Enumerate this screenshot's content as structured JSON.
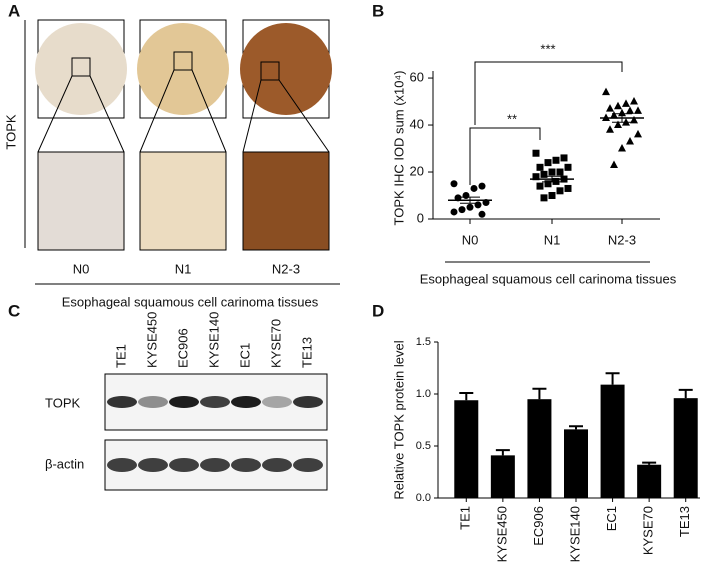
{
  "panels": {
    "a": {
      "letter": "A",
      "row_label": "TOPK",
      "columns": [
        "N0",
        "N1",
        "N2-3"
      ],
      "caption": "Esophageal squamous cell carinoma tissues"
    },
    "c": {
      "letter": "C",
      "lanes": [
        "TE1",
        "KYSE450",
        "EC906",
        "KYSE140",
        "EC1",
        "KYSE70",
        "TE13"
      ],
      "rows": [
        "TOPK",
        "β-actin"
      ]
    }
  },
  "chart_data": [
    {
      "type": "dot",
      "label": "B",
      "ylabel": "TOPK IHC IOD sum (x10⁴)",
      "xlabel": "Esophageal squamous cell carinoma tissues",
      "categories": [
        "N0",
        "N1",
        "N2-3"
      ],
      "values": [
        [
          15,
          14,
          13,
          10,
          9,
          7,
          6,
          5,
          4,
          3,
          2
        ],
        [
          28,
          26,
          25,
          24,
          22,
          22,
          20,
          20,
          19,
          18,
          17,
          16,
          15,
          14,
          13,
          12,
          10,
          9
        ],
        [
          54,
          50,
          49,
          48,
          47,
          46,
          46,
          45,
          44,
          43,
          42,
          41,
          40,
          38,
          36,
          33,
          30,
          23
        ]
      ],
      "means": [
        8,
        17,
        43
      ],
      "errors": [
        1.3,
        1.2,
        1.8
      ],
      "markers": [
        "circle",
        "square",
        "triangle"
      ],
      "color": "#000000",
      "ylim": [
        0,
        63
      ],
      "yticks": [
        0,
        20,
        40,
        60
      ],
      "annotations": [
        "**",
        "***"
      ]
    },
    {
      "type": "bar",
      "label": "D",
      "ylabel": "Relative TOPK protein level",
      "categories": [
        "TE1",
        "KYSE450",
        "EC906",
        "KYSE140",
        "EC1",
        "KYSE70",
        "TE13"
      ],
      "values": [
        0.94,
        0.41,
        0.95,
        0.66,
        1.09,
        0.32,
        0.96
      ],
      "errors": [
        0.07,
        0.05,
        0.1,
        0.03,
        0.11,
        0.02,
        0.08
      ],
      "color": "#000000",
      "ylim": [
        0,
        1.5
      ],
      "yticks": [
        {
          "value": 0,
          "label": "0.0"
        },
        {
          "value": 0.5,
          "label": "0.5"
        },
        {
          "value": 1,
          "label": "1.0"
        },
        {
          "value": 1.5,
          "label": "1.5"
        }
      ]
    }
  ]
}
